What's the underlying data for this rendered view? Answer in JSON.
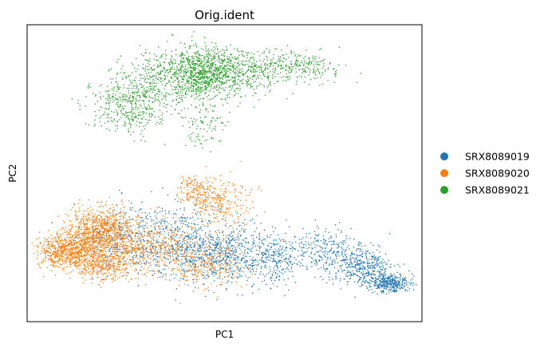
{
  "chart_data": {
    "type": "scatter",
    "title": "Orig.ident",
    "xlabel": "PC1",
    "ylabel": "PC2",
    "xticks": [],
    "yticks": [],
    "xlim": [
      -1,
      1
    ],
    "ylim": [
      -1,
      1
    ],
    "grid": false,
    "legend_position": "right",
    "series": [
      {
        "name": "SRX8089019",
        "color": "#1f77b4",
        "approx_points": 2600,
        "clusters": [
          {
            "cx": -0.52,
            "cy": -0.44,
            "sx": 0.1,
            "sy": 0.12,
            "weight": 0.1
          },
          {
            "cx": -0.22,
            "cy": -0.46,
            "sx": 0.14,
            "sy": 0.12,
            "weight": 0.22
          },
          {
            "cx": 0.02,
            "cy": -0.55,
            "sx": 0.12,
            "sy": 0.1,
            "weight": 0.2
          },
          {
            "cx": 0.26,
            "cy": -0.58,
            "sx": 0.08,
            "sy": 0.08,
            "weight": 0.1
          },
          {
            "cx": 0.52,
            "cy": -0.52,
            "sx": 0.1,
            "sy": 0.08,
            "weight": 0.1
          },
          {
            "cx": 0.7,
            "cy": -0.64,
            "sx": 0.08,
            "sy": 0.06,
            "weight": 0.14
          },
          {
            "cx": 0.84,
            "cy": -0.74,
            "sx": 0.05,
            "sy": 0.03,
            "weight": 0.14
          }
        ]
      },
      {
        "name": "SRX8089020",
        "color": "#ff7f0e",
        "approx_points": 3200,
        "clusters": [
          {
            "cx": -0.8,
            "cy": -0.52,
            "sx": 0.07,
            "sy": 0.06,
            "weight": 0.22
          },
          {
            "cx": -0.62,
            "cy": -0.4,
            "sx": 0.09,
            "sy": 0.08,
            "weight": 0.32
          },
          {
            "cx": -0.62,
            "cy": -0.62,
            "sx": 0.07,
            "sy": 0.05,
            "weight": 0.12
          },
          {
            "cx": -0.36,
            "cy": -0.5,
            "sx": 0.1,
            "sy": 0.09,
            "weight": 0.12
          },
          {
            "cx": -0.15,
            "cy": -0.12,
            "sx": 0.04,
            "sy": 0.05,
            "weight": 0.05
          },
          {
            "cx": -0.02,
            "cy": -0.2,
            "sx": 0.08,
            "sy": 0.09,
            "weight": 0.08
          },
          {
            "cx": -0.1,
            "cy": -0.62,
            "sx": 0.1,
            "sy": 0.08,
            "weight": 0.09
          }
        ]
      },
      {
        "name": "SRX8089021",
        "color": "#2ca02c",
        "approx_points": 2300,
        "clusters": [
          {
            "cx": -0.48,
            "cy": 0.47,
            "sx": 0.1,
            "sy": 0.1,
            "weight": 0.2
          },
          {
            "cx": -0.24,
            "cy": 0.66,
            "sx": 0.12,
            "sy": 0.09,
            "weight": 0.26
          },
          {
            "cx": -0.08,
            "cy": 0.68,
            "sx": 0.07,
            "sy": 0.08,
            "weight": 0.26
          },
          {
            "cx": 0.12,
            "cy": 0.68,
            "sx": 0.1,
            "sy": 0.08,
            "weight": 0.14
          },
          {
            "cx": 0.38,
            "cy": 0.72,
            "sx": 0.1,
            "sy": 0.05,
            "weight": 0.1
          },
          {
            "cx": -0.12,
            "cy": 0.32,
            "sx": 0.06,
            "sy": 0.08,
            "weight": 0.04
          }
        ]
      }
    ]
  }
}
